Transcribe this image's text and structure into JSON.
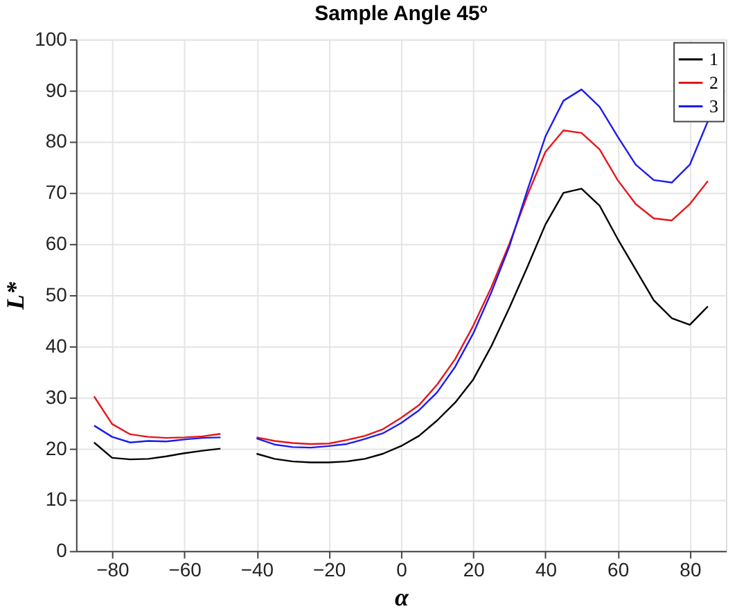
{
  "chart_data": {
    "type": "line",
    "title": "Sample Angle 45º",
    "xlabel": "α",
    "ylabel": "L*",
    "x": [
      -85,
      -80,
      -75,
      -70,
      -65,
      -60,
      -55,
      -50,
      -45,
      -40,
      -35,
      -30,
      -25,
      -20,
      -15,
      -10,
      -5,
      0,
      5,
      10,
      15,
      20,
      25,
      30,
      35,
      40,
      45,
      50,
      55,
      60,
      65,
      70,
      75,
      80,
      85
    ],
    "series": [
      {
        "name": "1",
        "color": "#000000",
        "values": [
          21.2,
          18.2,
          17.9,
          18.0,
          18.5,
          19.1,
          19.6,
          20.0,
          null,
          19.0,
          18.0,
          17.5,
          17.3,
          17.3,
          17.5,
          18.0,
          19.0,
          20.5,
          22.5,
          25.5,
          29,
          33.5,
          40,
          47.5,
          55.5,
          63.8,
          70,
          70.8,
          67.5,
          61,
          55,
          49,
          45.5,
          44.2,
          47.8
        ]
      },
      {
        "name": "2",
        "color": "#e8141b",
        "values": [
          30.2,
          24.8,
          22.8,
          22.3,
          22.1,
          22.2,
          22.4,
          22.9,
          null,
          22.2,
          21.5,
          21.1,
          20.9,
          21.0,
          21.7,
          22.5,
          23.8,
          26,
          28.5,
          32.5,
          37.5,
          44,
          51.5,
          60,
          69.5,
          78,
          82.2,
          81.7,
          78.5,
          72.5,
          67.8,
          65,
          64.6,
          67.8,
          72.3
        ]
      },
      {
        "name": "3",
        "color": "#1b1bf0",
        "values": [
          24.5,
          22.3,
          21.2,
          21.5,
          21.4,
          21.8,
          22.1,
          22.2,
          null,
          22,
          20.8,
          20.3,
          20.2,
          20.5,
          20.9,
          21.9,
          23,
          25,
          27.5,
          31,
          36,
          42.5,
          50.5,
          59.5,
          70.5,
          81,
          88,
          90.2,
          86.8,
          81,
          75.5,
          72.5,
          72,
          75.5,
          84
        ]
      }
    ],
    "xlim": [
      -90,
      90
    ],
    "xticks": [
      -80,
      -60,
      -40,
      -20,
      0,
      20,
      40,
      60,
      80
    ],
    "ylim": [
      0,
      100
    ],
    "yticks": [
      0,
      10,
      20,
      30,
      40,
      50,
      60,
      70,
      80,
      90,
      100
    ],
    "grid": true,
    "legend": "top right",
    "marker": "none",
    "line_style": "solid"
  }
}
